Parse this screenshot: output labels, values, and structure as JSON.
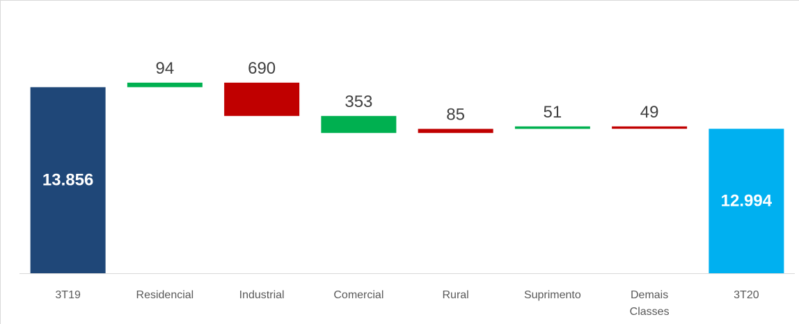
{
  "chart_data": {
    "type": "waterfall",
    "categories": [
      "3T19",
      "Residencial",
      "Industrial",
      "Comercial",
      "Rural",
      "Suprimento",
      "Demais Classes",
      "3T20"
    ],
    "values": [
      13856,
      94,
      -690,
      -353,
      85,
      51,
      -49,
      12994
    ],
    "value_labels": [
      "13.856",
      "94",
      "690",
      "353",
      "85",
      "51",
      "49",
      "12.994"
    ],
    "measures": [
      "total",
      "relative",
      "relative",
      "relative",
      "relative",
      "relative",
      "relative",
      "total"
    ],
    "colors": [
      "#1f4778",
      "#00b050",
      "#c00000",
      "#00b050",
      "#c00000",
      "#00b050",
      "#c00000",
      "#00b0f0"
    ],
    "ylim": [
      10000,
      15000
    ]
  }
}
